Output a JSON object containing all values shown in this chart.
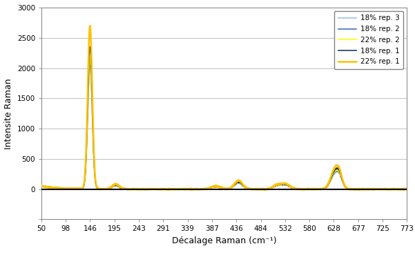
{
  "title": "",
  "xlabel": "Décalage Raman (cm⁻¹)",
  "ylabel": "Intensite Raman",
  "xlim": [
    50,
    773
  ],
  "ylim": [
    -500,
    3000
  ],
  "yticks": [
    -500,
    0,
    500,
    1000,
    1500,
    2000,
    2500,
    3000
  ],
  "xticks": [
    50,
    98,
    146,
    195,
    243,
    291,
    339,
    387,
    436,
    484,
    532,
    580,
    628,
    677,
    725,
    773
  ],
  "series": [
    {
      "label": "22% rep. 1",
      "color": "#FFC000",
      "lw": 1.8,
      "zorder": 5
    },
    {
      "label": "18% rep. 1",
      "color": "#1F3864",
      "lw": 1.2,
      "zorder": 4
    },
    {
      "label": "22% rep. 2",
      "color": "#FFFF00",
      "lw": 1.2,
      "zorder": 3
    },
    {
      "label": "18% rep. 2",
      "color": "#4472C4",
      "lw": 1.2,
      "zorder": 2
    },
    {
      "label": "18% rep. 3",
      "color": "#9DC3E6",
      "lw": 1.2,
      "zorder": 1
    }
  ],
  "background_color": "#ffffff",
  "grid_color": "#c0c0c0",
  "spine_color": "#808080",
  "zero_line_color": "#000000",
  "peak_positions": [
    146,
    197,
    395,
    440,
    515,
    532,
    630,
    640
  ],
  "peak_amplitudes_22_1": [
    2700,
    80,
    50,
    140,
    60,
    90,
    300,
    200
  ],
  "peak_amplitudes_18_1": [
    2350,
    70,
    45,
    120,
    55,
    80,
    260,
    180
  ],
  "peak_amplitudes_22_2": [
    2150,
    65,
    40,
    110,
    50,
    75,
    240,
    170
  ],
  "peak_amplitudes_18_2": [
    2100,
    60,
    38,
    105,
    48,
    72,
    230,
    160
  ],
  "peak_amplitudes_18_3": [
    2050,
    58,
    36,
    100,
    46,
    70,
    220,
    155
  ],
  "peak_widths": [
    4.5,
    7,
    9,
    8,
    7,
    9,
    8,
    6
  ],
  "baseline_height": 50,
  "baseline_decay": 30
}
